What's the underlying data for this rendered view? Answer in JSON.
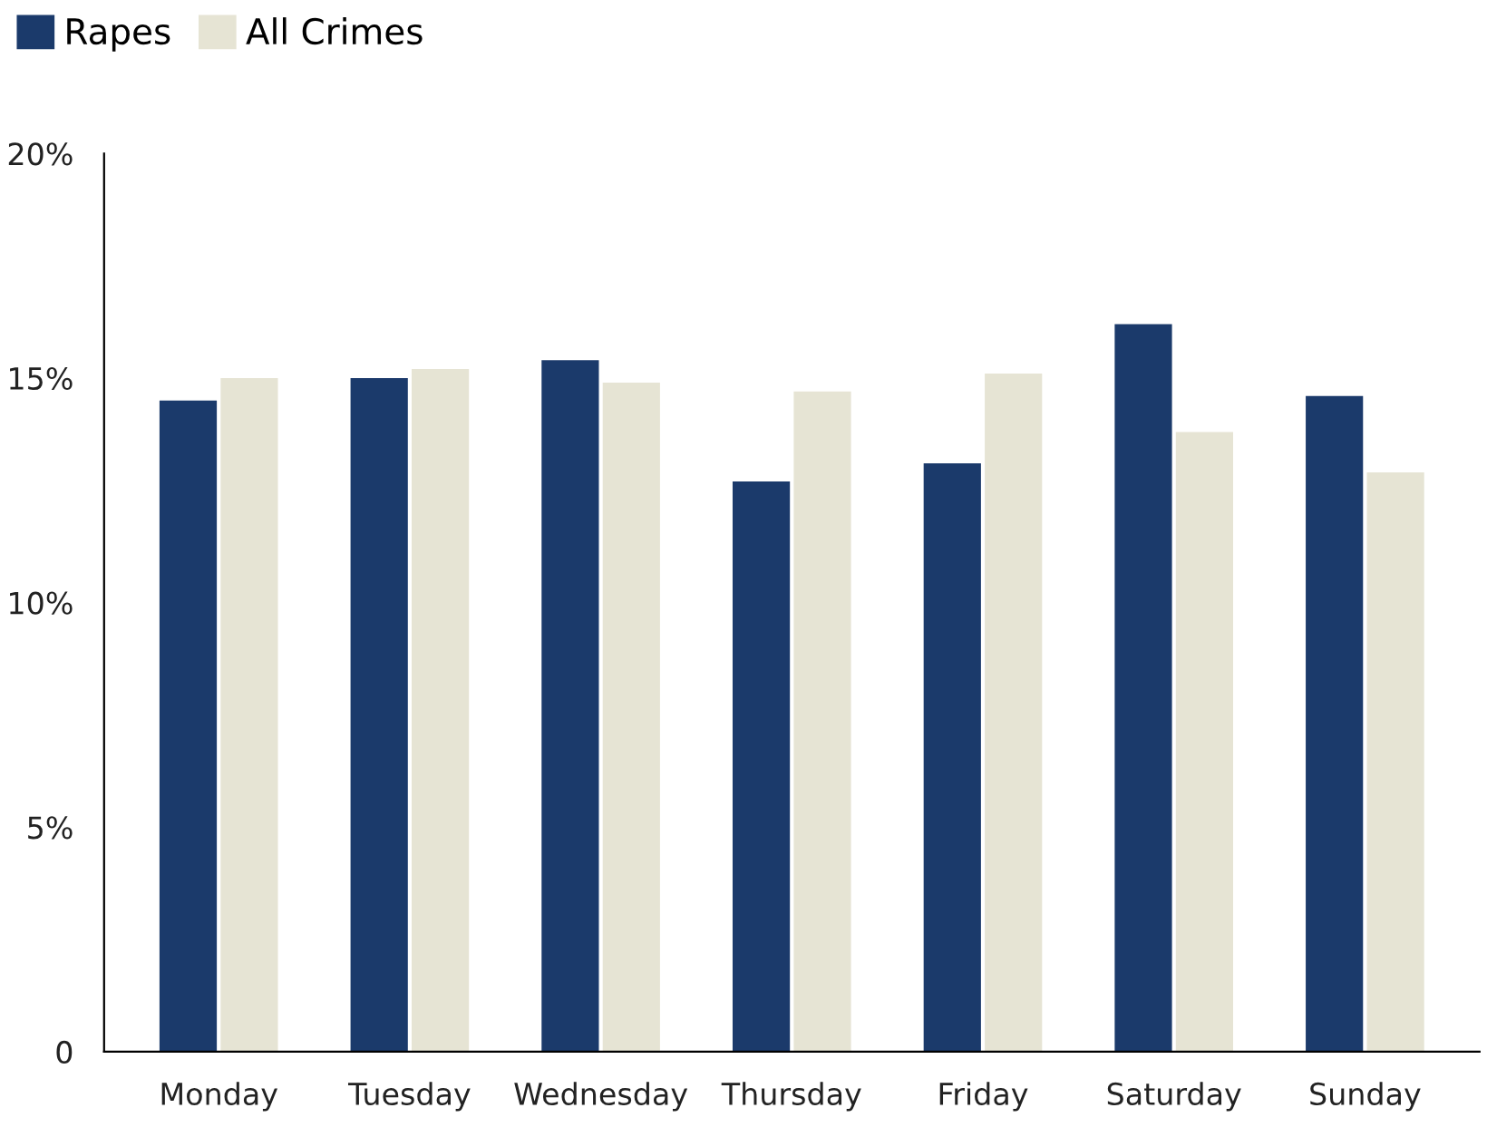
{
  "chart_data": {
    "type": "bar",
    "categories": [
      "Monday",
      "Tuesday",
      "Wednesday",
      "Thursday",
      "Friday",
      "Saturday",
      "Sunday"
    ],
    "series": [
      {
        "name": "Rapes",
        "color": "#1b3a6b",
        "values": [
          14.5,
          15.0,
          15.4,
          12.7,
          13.1,
          16.2,
          14.6
        ]
      },
      {
        "name": "All Crimes",
        "color": "#e6e4d4",
        "values": [
          15.0,
          15.2,
          14.9,
          14.7,
          15.1,
          13.8,
          12.9
        ]
      }
    ],
    "ylim": [
      0,
      20
    ],
    "yticks": [
      0,
      {
        "value": 5,
        "label": "5%"
      },
      {
        "value": 10,
        "label": "10%"
      },
      {
        "value": 15,
        "label": "15%"
      },
      {
        "value": 20,
        "label": "20%"
      }
    ],
    "grid": false,
    "legend": "top left"
  }
}
